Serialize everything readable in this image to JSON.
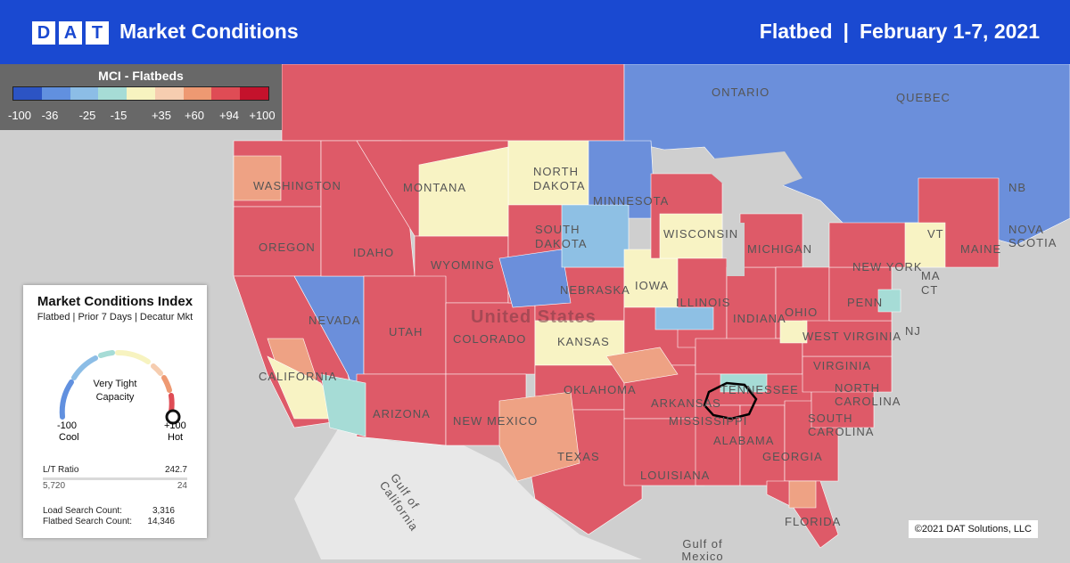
{
  "header": {
    "logo_letters": [
      "D",
      "A",
      "T"
    ],
    "title": "Market Conditions",
    "equipment": "Flatbed",
    "separator": "|",
    "date_range": "February 1-7, 2021"
  },
  "legend": {
    "title": "MCI - Flatbeds",
    "colors": [
      "#2c54c4",
      "#6190df",
      "#8cbde6",
      "#a6dcd6",
      "#f7f3c0",
      "#f6cdb0",
      "#ee9972",
      "#df4c55",
      "#c4122c"
    ],
    "tick_labels": [
      "-100",
      "-36",
      "-25",
      "-15",
      "+35",
      "+60",
      "+94",
      "+100"
    ]
  },
  "map": {
    "country_label": "United States",
    "labels": [
      "ONTARIO",
      "QUEBEC",
      "NB",
      "NOVA SCOTIA",
      "MAINE",
      "WASHINGTON",
      "OREGON",
      "IDAHO",
      "MONTANA",
      "NORTH DAKOTA",
      "SOUTH DAKOTA",
      "MINNESOTA",
      "WISCONSIN",
      "MICHIGAN",
      "NEW YORK",
      "VT",
      "MA",
      "CT",
      "PENN",
      "NEBRASKA",
      "IOWA",
      "ILLINOIS",
      "INDIANA",
      "OHIO",
      "WEST VIRGINIA",
      "VIRGINIA",
      "NORTH CAROLINA",
      "SOUTH CAROLINA",
      "GEORGIA",
      "FLORIDA",
      "ALABAMA",
      "MISSISSIPPI",
      "LOUISIANA",
      "ARKANSAS",
      "TENNESSEE",
      "OKLAHOMA",
      "TEXAS",
      "KANSAS",
      "COLORADO",
      "NEW MEXICO",
      "ARIZONA",
      "UTAH",
      "NEVADA",
      "CALIFORNIA",
      "WYOMING",
      "NJ",
      "Gulf of California",
      "Gulf of Mexico"
    ],
    "colors": {
      "hot": "#de5a68",
      "cool": "#6b8fdb",
      "neutral": "#f8f3c4",
      "warm": "#eea284",
      "light": "#8ec0e4",
      "teal": "#a6dcd6"
    }
  },
  "card": {
    "title": "Market Conditions Index",
    "subtitle": "Flatbed | Prior 7 Days | Decatur Mkt",
    "gauge_text": "Very Tight Capacity",
    "gauge_value": 100,
    "min_value": "-100",
    "min_label": "Cool",
    "max_value": "+100",
    "max_label": "Hot",
    "lt_ratio_label": "L/T Ratio",
    "lt_ratio_value": "242.7",
    "loads_value": "5,720",
    "trucks_value": "24",
    "load_search_label": "Load Search Count:",
    "load_search_value": "3,316",
    "flatbed_search_label": "Flatbed Search Count:",
    "flatbed_search_value": "14,346"
  },
  "copyright": "©2021 DAT Solutions, LLC"
}
